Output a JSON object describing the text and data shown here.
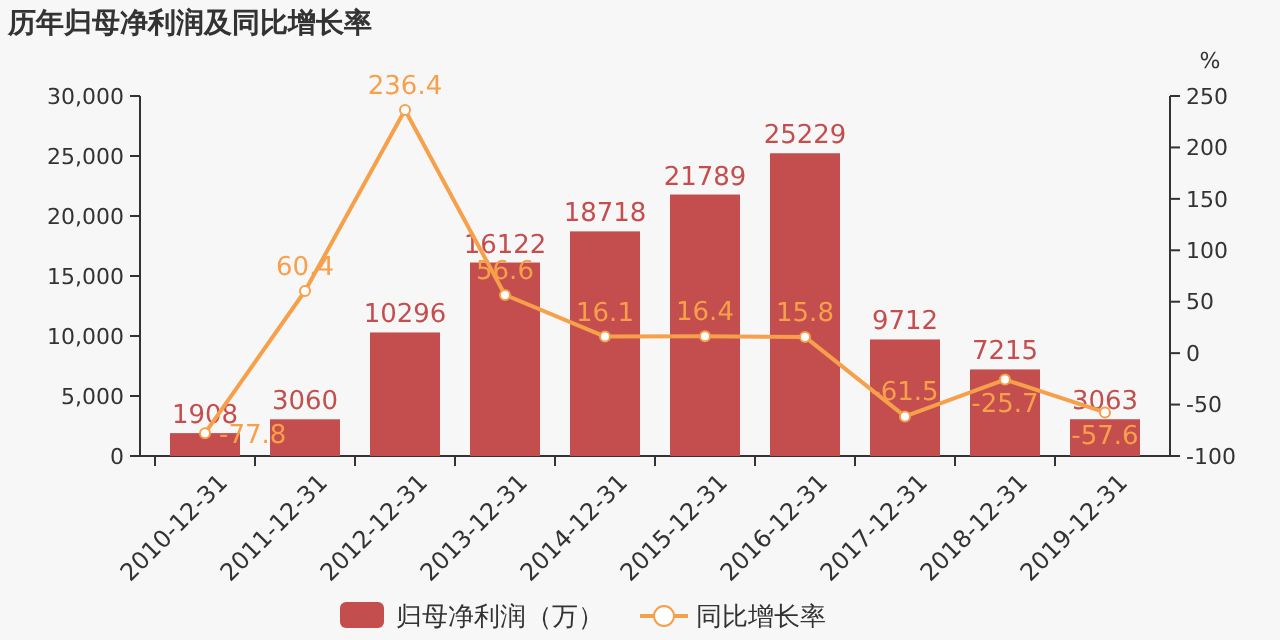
{
  "chart_data": {
    "type": "bar",
    "title": "历年归母净利润及同比增长率",
    "y2label": "%",
    "categories": [
      "2010-12-31",
      "2011-12-31",
      "2012-12-31",
      "2013-12-31",
      "2014-12-31",
      "2015-12-31",
      "2016-12-31",
      "2017-12-31",
      "2018-12-31",
      "2019-12-31"
    ],
    "series": [
      {
        "name": "归母净利润（万）",
        "color": "#c44e4e",
        "values": [
          1908,
          3060,
          10296,
          16122,
          18718,
          21789,
          25229,
          9712,
          7215,
          3063
        ]
      },
      {
        "name": "同比增长率",
        "type": "line",
        "axis": "y2",
        "color": "#f7a04b",
        "marker": "circle",
        "values": [
          -77.8,
          60.4,
          236.4,
          56.6,
          16.1,
          16.4,
          15.8,
          -61.5,
          -25.7,
          -57.6
        ]
      }
    ],
    "data_labels": true,
    "ylim": [
      0,
      30000
    ],
    "yticks": [
      0,
      {
        "value": 5000,
        "label": "5,000"
      },
      {
        "value": 10000,
        "label": "10,000"
      },
      {
        "value": 15000,
        "label": "15,000"
      },
      {
        "value": 20000,
        "label": "20,000"
      },
      {
        "value": 25000,
        "label": "25,000"
      },
      {
        "value": 30000,
        "label": "30,000"
      }
    ],
    "y2lim": [
      -100,
      250
    ],
    "y2ticks": [
      -100,
      -50,
      0,
      50,
      100,
      150,
      200,
      250
    ],
    "grid": false,
    "legend": "bottom"
  }
}
